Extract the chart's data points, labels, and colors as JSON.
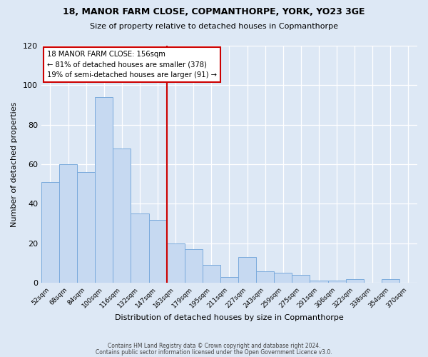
{
  "title": "18, MANOR FARM CLOSE, COPMANTHORPE, YORK, YO23 3GE",
  "subtitle": "Size of property relative to detached houses in Copmanthorpe",
  "xlabel": "Distribution of detached houses by size in Copmanthorpe",
  "ylabel": "Number of detached properties",
  "bar_labels": [
    "52sqm",
    "68sqm",
    "84sqm",
    "100sqm",
    "116sqm",
    "132sqm",
    "147sqm",
    "163sqm",
    "179sqm",
    "195sqm",
    "211sqm",
    "227sqm",
    "243sqm",
    "259sqm",
    "275sqm",
    "291sqm",
    "306sqm",
    "322sqm",
    "338sqm",
    "354sqm",
    "370sqm"
  ],
  "bar_values": [
    51,
    60,
    56,
    94,
    68,
    35,
    32,
    20,
    17,
    9,
    3,
    13,
    6,
    5,
    4,
    1,
    1,
    2,
    0,
    2,
    0
  ],
  "bar_color": "#c6d9f1",
  "bar_edge_color": "#7aaadc",
  "vline_x_index": 7,
  "vline_color": "#cc0000",
  "annotation_title": "18 MANOR FARM CLOSE: 156sqm",
  "annotation_line1": "← 81% of detached houses are smaller (378)",
  "annotation_line2": "19% of semi-detached houses are larger (91) →",
  "annotation_box_color": "#ffffff",
  "annotation_box_edge": "#cc0000",
  "ylim": [
    0,
    120
  ],
  "yticks": [
    0,
    20,
    40,
    60,
    80,
    100,
    120
  ],
  "footer1": "Contains HM Land Registry data © Crown copyright and database right 2024.",
  "footer2": "Contains public sector information licensed under the Open Government Licence v3.0.",
  "bg_color": "#dde8f5",
  "plot_bg_color": "#dde8f5"
}
